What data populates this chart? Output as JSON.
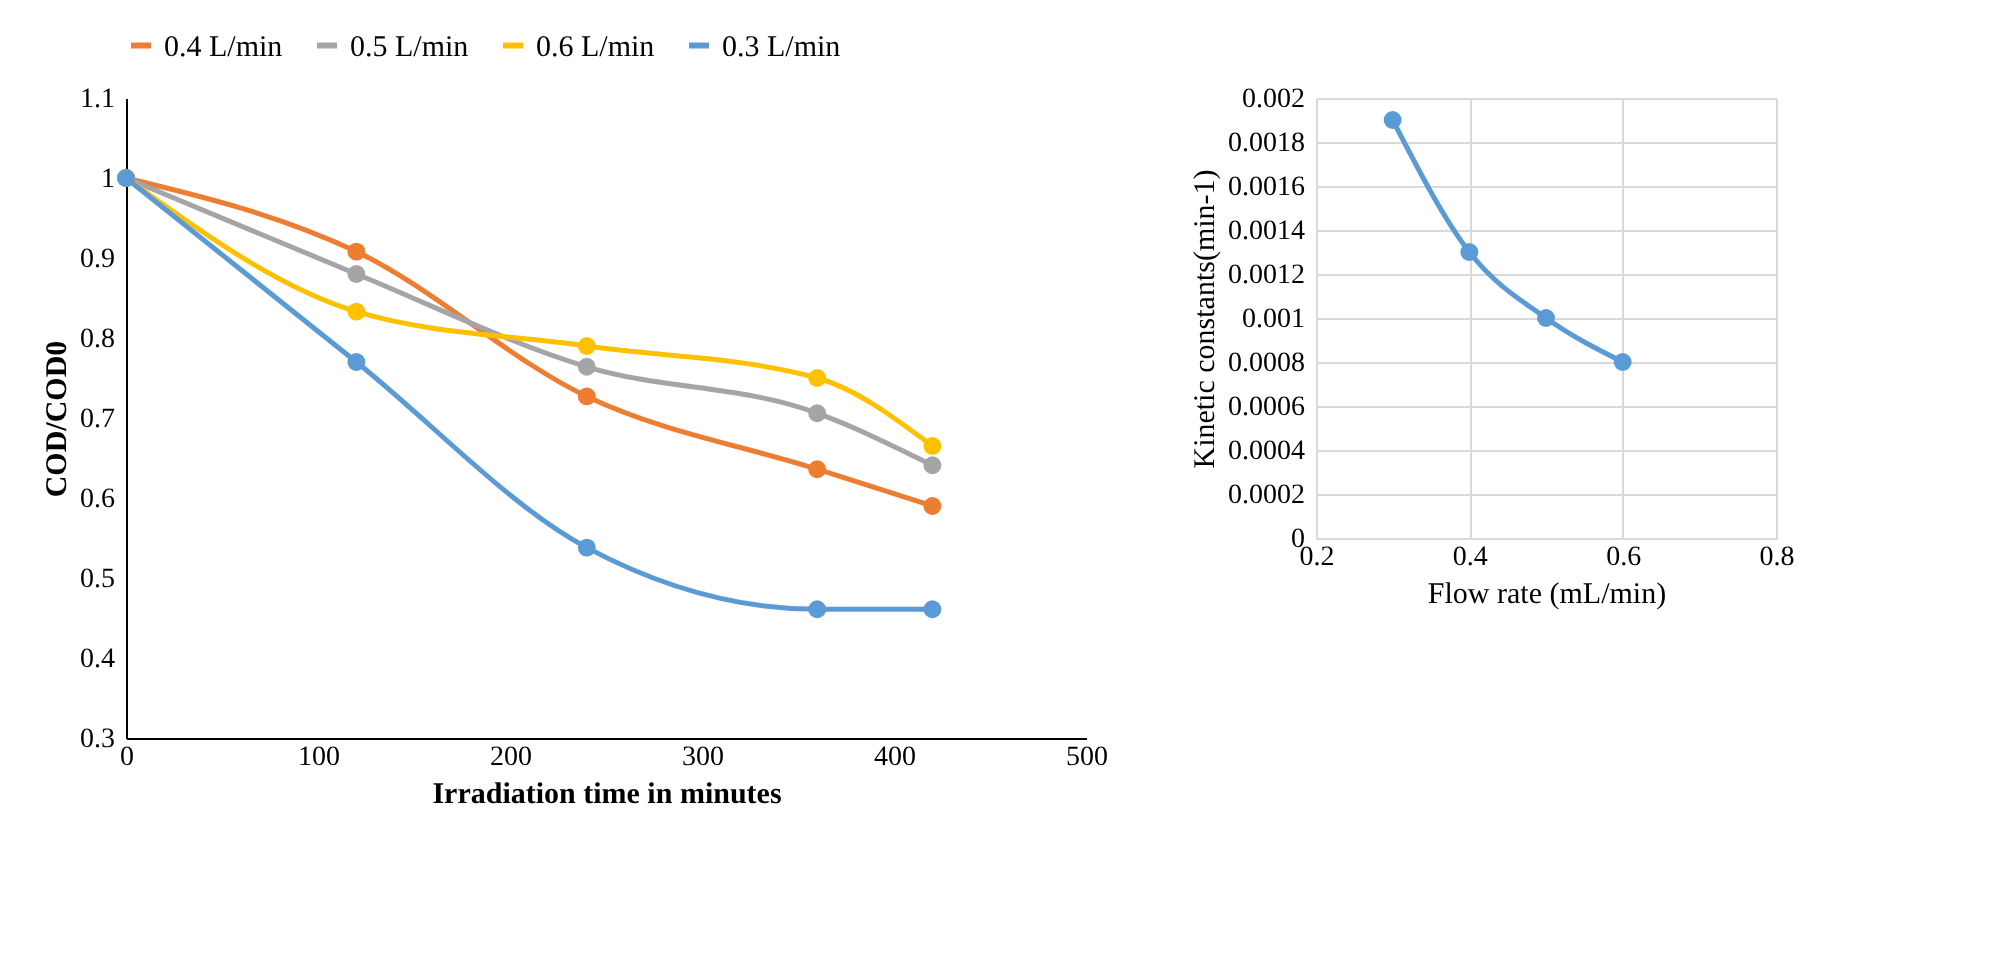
{
  "chart_data": [
    {
      "type": "line",
      "xlabel": "Irradiation time in minutes",
      "ylabel": "COD/COD0",
      "x": [
        0,
        120,
        240,
        360,
        420
      ],
      "xlim": [
        0,
        500
      ],
      "xticks": [
        0,
        100,
        200,
        300,
        400,
        500
      ],
      "ylim": [
        0.3,
        1.1
      ],
      "yticks": [
        0.3,
        0.4,
        0.5,
        0.6,
        0.7,
        0.8,
        0.9,
        1,
        1.1
      ],
      "grid": false,
      "legend": "top",
      "marker": "circle",
      "line_style": "solid",
      "series": [
        {
          "name": "0.4 L/min",
          "color": "#ed7d31",
          "values": [
            1,
            0.908,
            0.727,
            0.636,
            0.59
          ]
        },
        {
          "name": "0.5 L/min",
          "color": "#a5a5a5",
          "values": [
            1,
            0.88,
            0.764,
            0.706,
            0.641
          ]
        },
        {
          "name": "0.6 L/min",
          "color": "#ffc000",
          "values": [
            1,
            0.833,
            0.79,
            0.75,
            0.665
          ]
        },
        {
          "name": "0.3 L/min",
          "color": "#5b9bd5",
          "values": [
            1,
            0.77,
            0.538,
            0.461,
            0.461
          ]
        }
      ]
    },
    {
      "type": "line",
      "xlabel": "Flow rate (mL/min)",
      "ylabel": "Kinetic constants(min-1)",
      "x": [
        0.3,
        0.4,
        0.5,
        0.6
      ],
      "xlim": [
        0.2,
        0.8
      ],
      "xticks": [
        0.2,
        0.4,
        0.6,
        0.8
      ],
      "ylim": [
        0,
        0.002
      ],
      "yticks": [
        0,
        0.0002,
        0.0004,
        0.0006,
        0.0008,
        0.001,
        0.0012,
        0.0014,
        0.0016,
        0.0018,
        0.002
      ],
      "grid": true,
      "legend": false,
      "marker": "circle",
      "line_style": "solid",
      "series": [
        {
          "color": "#5b9bd5",
          "values": [
            0.0019,
            0.0013,
            0.001,
            0.0008
          ]
        }
      ]
    }
  ]
}
